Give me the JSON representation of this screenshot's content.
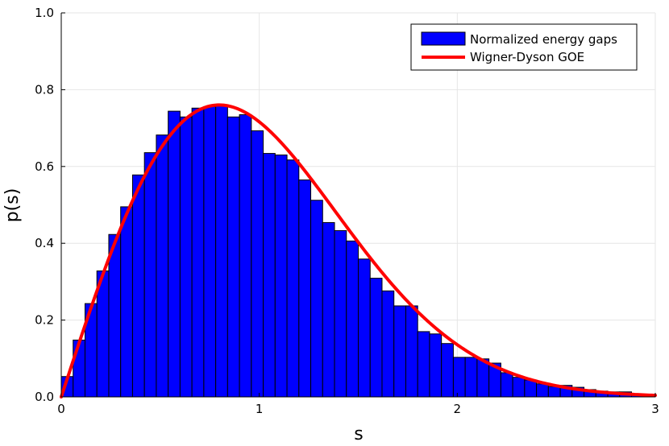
{
  "chart_data": {
    "type": "bar",
    "title": "",
    "xlabel": "s",
    "ylabel": "p(s)",
    "xlim": [
      0,
      3
    ],
    "ylim": [
      0,
      1
    ],
    "xticks": [
      "0",
      "1",
      "2",
      "3"
    ],
    "yticks": [
      "0.0",
      "0.2",
      "0.4",
      "0.6",
      "0.8",
      "1.0"
    ],
    "grid": true,
    "legend_position": "top-right",
    "bin_width": 0.06,
    "bin_start": 0,
    "series": [
      {
        "name": "Normalized energy gaps",
        "kind": "histogram",
        "color": "#0000ff",
        "values": [
          0.053,
          0.148,
          0.243,
          0.328,
          0.423,
          0.495,
          0.578,
          0.636,
          0.682,
          0.744,
          0.729,
          0.752,
          0.756,
          0.76,
          0.729,
          0.735,
          0.693,
          0.634,
          0.63,
          0.617,
          0.565,
          0.512,
          0.454,
          0.433,
          0.406,
          0.359,
          0.309,
          0.276,
          0.237,
          0.237,
          0.17,
          0.164,
          0.139,
          0.103,
          0.103,
          0.099,
          0.088,
          0.063,
          0.051,
          0.044,
          0.034,
          0.027,
          0.03,
          0.025,
          0.019,
          0.015,
          0.013,
          0.013,
          0.008,
          0.006
        ]
      },
      {
        "name": "Wigner-Dyson GOE",
        "kind": "line",
        "color": "#ff0000",
        "formula": "p(s) = (pi/2) s exp(-pi s^2 / 4)"
      }
    ]
  }
}
